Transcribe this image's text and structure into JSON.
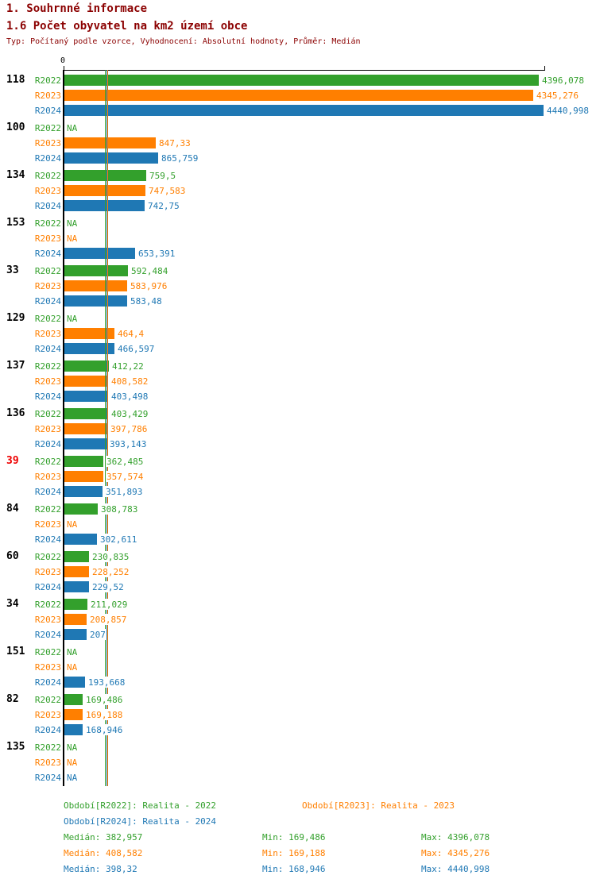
{
  "title": "1. Souhrnné informace",
  "subtitle": "1.6 Počet obyvatel na km2 území obce",
  "meta": "Typ: Počítaný podle vzorce, Vyhodnocení: Absolutní hodnoty, Průměr: Medián",
  "colors": {
    "r2022": "#33a02c",
    "r2023": "#ff7f00",
    "r2024": "#1f78b4",
    "title_text": "#8b0000",
    "highlight_label": "#ee0000",
    "axis": "#000000"
  },
  "chart_data": {
    "type": "bar",
    "orientation": "horizontal",
    "x_axis_zero_label": "0",
    "x_max": 4440.998,
    "grid": false,
    "series": [
      "R2022",
      "R2023",
      "R2024"
    ],
    "median_markers": [
      382.957,
      398.32,
      408.582
    ],
    "median_marker_series": [
      "R2022",
      "R2024",
      "R2023"
    ],
    "groups": [
      {
        "label": "118",
        "highlight": false,
        "values": [
          "4396,078",
          "4345,276",
          "4440,998"
        ]
      },
      {
        "label": "100",
        "highlight": false,
        "values": [
          "NA",
          "847,33",
          "865,759"
        ]
      },
      {
        "label": "134",
        "highlight": false,
        "values": [
          "759,5",
          "747,583",
          "742,75"
        ]
      },
      {
        "label": "153",
        "highlight": false,
        "values": [
          "NA",
          "NA",
          "653,391"
        ]
      },
      {
        "label": "33",
        "highlight": false,
        "values": [
          "592,484",
          "583,976",
          "583,48"
        ]
      },
      {
        "label": "129",
        "highlight": false,
        "values": [
          "NA",
          "464,4",
          "466,597"
        ]
      },
      {
        "label": "137",
        "highlight": false,
        "values": [
          "412,22",
          "408,582",
          "403,498"
        ]
      },
      {
        "label": "136",
        "highlight": false,
        "values": [
          "403,429",
          "397,786",
          "393,143"
        ]
      },
      {
        "label": "39",
        "highlight": true,
        "values": [
          "362,485",
          "357,574",
          "351,893"
        ]
      },
      {
        "label": "84",
        "highlight": false,
        "values": [
          "308,783",
          "NA",
          "302,611"
        ]
      },
      {
        "label": "60",
        "highlight": false,
        "values": [
          "230,835",
          "228,252",
          "229,52"
        ]
      },
      {
        "label": "34",
        "highlight": false,
        "values": [
          "211,029",
          "208,857",
          "207"
        ]
      },
      {
        "label": "151",
        "highlight": false,
        "values": [
          "NA",
          "NA",
          "193,668"
        ]
      },
      {
        "label": "82",
        "highlight": false,
        "values": [
          "169,486",
          "169,188",
          "168,946"
        ]
      },
      {
        "label": "135",
        "highlight": false,
        "values": [
          "NA",
          "NA",
          "NA"
        ]
      }
    ]
  },
  "legend": {
    "r2022": "Období[R2022]: Realita - 2022",
    "r2023": "Období[R2023]: Realita - 2023",
    "r2024": "Období[R2024]: Realita - 2024"
  },
  "stats": [
    {
      "median": "Medián: 382,957",
      "min": "Min: 169,486",
      "max": "Max: 4396,078"
    },
    {
      "median": "Medián: 408,582",
      "min": "Min: 169,188",
      "max": "Max: 4345,276"
    },
    {
      "median": "Medián: 398,32",
      "min": "Min: 168,946",
      "max": "Max: 4440,998"
    }
  ]
}
